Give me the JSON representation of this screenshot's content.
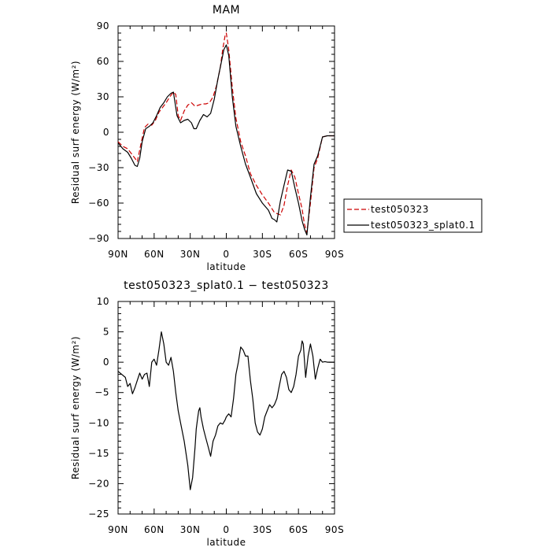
{
  "chart_data": [
    {
      "type": "line",
      "title": "MAM",
      "xlabel": "latitude",
      "ylabel": "Residual surf energy (W/m²)",
      "xlim": [
        90,
        -90
      ],
      "ylim": [
        -90,
        90
      ],
      "x_ticks": [
        90,
        60,
        30,
        0,
        -30,
        -60,
        -90
      ],
      "x_tick_labels": [
        "90N",
        "60N",
        "30N",
        "0",
        "30S",
        "60S",
        "90S"
      ],
      "y_ticks": [
        -90,
        -60,
        -30,
        0,
        30,
        60,
        90
      ],
      "y_tick_labels": [
        "−90",
        "−60",
        "−30",
        "0",
        "30",
        "60",
        "90"
      ],
      "legend_position": "right",
      "series": [
        {
          "name": "test050323",
          "color": "#cc0000",
          "dash": "dashed",
          "x": [
            90,
            86,
            82,
            79,
            76,
            74,
            71,
            68,
            65,
            62,
            59,
            56,
            53,
            50,
            47,
            44,
            42,
            40,
            38,
            35,
            32,
            29,
            26,
            23,
            20,
            17,
            14,
            11,
            8,
            5,
            3,
            1,
            0,
            -2,
            -5,
            -8,
            -12,
            -16,
            -20,
            -25,
            -30,
            -35,
            -40,
            -45,
            -48,
            -51,
            -54,
            -57,
            -60,
            -63,
            -65,
            -67,
            -70,
            -73,
            -76,
            -80,
            -84,
            -88,
            -90
          ],
          "values": [
            -8,
            -12,
            -14,
            -18,
            -22,
            -25,
            -10,
            4,
            7,
            6,
            10,
            17,
            21,
            25,
            30,
            34,
            32,
            14,
            10,
            18,
            23,
            25,
            22,
            23,
            24,
            24,
            25,
            30,
            40,
            55,
            70,
            82,
            84,
            70,
            38,
            12,
            -8,
            -20,
            -35,
            -45,
            -53,
            -60,
            -68,
            -70,
            -62,
            -45,
            -32,
            -38,
            -52,
            -65,
            -78,
            -85,
            -60,
            -30,
            -22,
            -4,
            -3,
            -3,
            -3
          ]
        },
        {
          "name": "test050323_splat0.1",
          "color": "#000000",
          "dash": "solid",
          "x": [
            90,
            86,
            82,
            79,
            76,
            74,
            72,
            70,
            67,
            64,
            61,
            58,
            55,
            52,
            49,
            46,
            44,
            41,
            38,
            35,
            32,
            29,
            27,
            25,
            22,
            19,
            16,
            13,
            10,
            7,
            4,
            2,
            0,
            -2,
            -5,
            -8,
            -12,
            -16,
            -20,
            -25,
            -30,
            -35,
            -38,
            -40,
            -42,
            -45,
            -48,
            -51,
            -54,
            -57,
            -60,
            -63,
            -65,
            -67,
            -70,
            -73,
            -76,
            -80,
            -84,
            -88,
            -90
          ],
          "values": [
            -9,
            -14,
            -17,
            -22,
            -28,
            -29,
            -22,
            -8,
            3,
            5,
            8,
            14,
            21,
            25,
            30,
            33,
            34,
            14,
            8,
            10,
            11,
            8,
            3,
            3,
            10,
            15,
            13,
            16,
            28,
            45,
            60,
            70,
            74,
            65,
            30,
            5,
            -12,
            -27,
            -38,
            -52,
            -60,
            -66,
            -73,
            -74,
            -76,
            -58,
            -45,
            -32,
            -33,
            -47,
            -60,
            -75,
            -82,
            -87,
            -55,
            -27,
            -20,
            -4,
            -3,
            -3,
            -3
          ]
        }
      ]
    },
    {
      "type": "line",
      "title": "test050323_splat0.1 − test050323",
      "xlabel": "latitude",
      "ylabel": "Residual surf energy (W/m²)",
      "xlim": [
        90,
        -90
      ],
      "ylim": [
        -25,
        10
      ],
      "x_ticks": [
        90,
        60,
        30,
        0,
        -30,
        -60,
        -90
      ],
      "x_tick_labels": [
        "90N",
        "60N",
        "30N",
        "0",
        "30S",
        "60S",
        "90S"
      ],
      "y_ticks": [
        -25,
        -20,
        -15,
        -10,
        -5,
        0,
        5,
        10
      ],
      "y_tick_labels": [
        "−25",
        "−20",
        "−15",
        "−10",
        "−5",
        "0",
        "5",
        "10"
      ],
      "series": [
        {
          "name": "",
          "color": "#000000",
          "dash": "solid",
          "x": [
            90,
            87,
            84,
            82,
            80,
            78,
            76,
            74,
            72,
            70,
            68,
            66,
            64,
            62,
            60,
            58,
            56,
            54,
            52,
            50,
            48,
            46,
            44,
            42,
            40,
            38,
            35,
            32,
            30,
            28,
            26,
            25,
            24,
            23,
            22,
            21,
            19,
            17,
            15,
            13,
            11,
            9,
            7,
            5,
            3,
            1,
            0,
            -2,
            -4,
            -6,
            -8,
            -10,
            -12,
            -14,
            -16,
            -18,
            -20,
            -22,
            -24,
            -26,
            -28,
            -30,
            -32,
            -34,
            -36,
            -38,
            -40,
            -42,
            -44,
            -46,
            -48,
            -50,
            -52,
            -54,
            -56,
            -58,
            -60,
            -62,
            -63,
            -64,
            -66,
            -68,
            -70,
            -72,
            -74,
            -76,
            -78,
            -80,
            -82,
            -84,
            -86,
            -88,
            -90
          ],
          "values": [
            -1.5,
            -2,
            -2.5,
            -4,
            -3.5,
            -5.2,
            -4.2,
            -3,
            -1.8,
            -2.8,
            -2,
            -1.8,
            -4,
            0,
            0.5,
            -0.5,
            2,
            5,
            3,
            0,
            -0.5,
            0.8,
            -1.5,
            -5,
            -8,
            -10,
            -13,
            -17,
            -21,
            -19,
            -14,
            -11,
            -9.5,
            -8,
            -7.5,
            -9,
            -11,
            -12.5,
            -14,
            -15.5,
            -13,
            -12,
            -10.5,
            -10,
            -10.2,
            -9.5,
            -9,
            -8.5,
            -9,
            -6,
            -2,
            0,
            2.5,
            2,
            1,
            1,
            -3,
            -6,
            -10,
            -11.5,
            -12,
            -11,
            -9,
            -8,
            -7,
            -7.5,
            -7,
            -6,
            -4,
            -2,
            -1.5,
            -2.5,
            -4.5,
            -5,
            -4,
            -2,
            1,
            2,
            3.5,
            3,
            -2.5,
            1,
            3,
            1,
            -2.8,
            -1,
            0.5,
            0,
            0.1,
            0,
            0,
            0,
            0
          ]
        }
      ]
    }
  ],
  "legend_items": [
    {
      "label": "test050323",
      "color": "#cc0000",
      "dash": "dashed"
    },
    {
      "label": "test050323_splat0.1",
      "color": "#000000",
      "dash": "solid"
    }
  ]
}
